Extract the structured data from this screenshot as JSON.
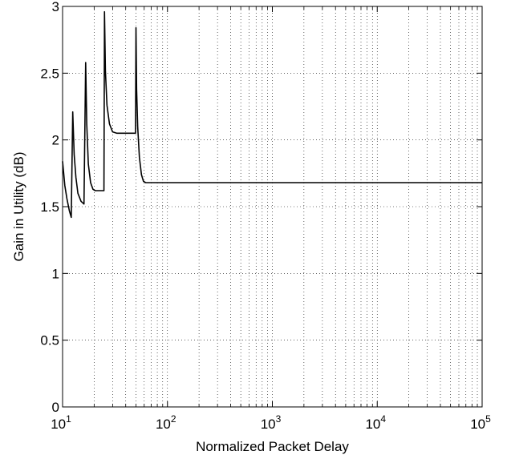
{
  "chart_data": {
    "type": "line",
    "title": "",
    "xlabel": "Normalized Packet Delay",
    "ylabel": "Gain in Utility (dB)",
    "xscale": "log",
    "xlim": [
      10,
      100000
    ],
    "ylim": [
      0,
      3
    ],
    "grid": true,
    "legend": "none",
    "x_ticks": [
      {
        "value": 10,
        "base": "10",
        "exp": "1"
      },
      {
        "value": 100,
        "base": "10",
        "exp": "2"
      },
      {
        "value": 1000,
        "base": "10",
        "exp": "3"
      },
      {
        "value": 10000,
        "base": "10",
        "exp": "4"
      },
      {
        "value": 100000,
        "base": "10",
        "exp": "5"
      }
    ],
    "y_ticks": [
      {
        "value": 0,
        "label": "0"
      },
      {
        "value": 0.5,
        "label": "0.5"
      },
      {
        "value": 1,
        "label": "1"
      },
      {
        "value": 1.5,
        "label": "1.5"
      },
      {
        "value": 2,
        "label": "2"
      },
      {
        "value": 2.5,
        "label": "2.5"
      },
      {
        "value": 3,
        "label": "3"
      }
    ],
    "series": [
      {
        "color": "#000000",
        "points": [
          [
            10.0,
            1.84
          ],
          [
            10.5,
            1.66
          ],
          [
            11.0,
            1.56
          ],
          [
            11.6,
            1.47
          ],
          [
            12.1,
            1.42
          ],
          [
            12.5,
            2.21
          ],
          [
            12.9,
            1.89
          ],
          [
            13.4,
            1.72
          ],
          [
            14.0,
            1.6
          ],
          [
            15.0,
            1.54
          ],
          [
            16.0,
            1.52
          ],
          [
            16.6,
            2.58
          ],
          [
            17.0,
            2.12
          ],
          [
            17.6,
            1.82
          ],
          [
            18.5,
            1.68
          ],
          [
            19.5,
            1.63
          ],
          [
            20.5,
            1.62
          ],
          [
            24.8,
            1.62
          ],
          [
            25.1,
            2.96
          ],
          [
            25.6,
            2.52
          ],
          [
            26.5,
            2.26
          ],
          [
            28.0,
            2.12
          ],
          [
            30.0,
            2.06
          ],
          [
            33.0,
            2.05
          ],
          [
            49.6,
            2.05
          ],
          [
            50.1,
            2.84
          ],
          [
            50.8,
            2.38
          ],
          [
            52.0,
            2.1
          ],
          [
            54.0,
            1.87
          ],
          [
            56.5,
            1.74
          ],
          [
            59.0,
            1.69
          ],
          [
            62.0,
            1.68
          ],
          [
            100000.0,
            1.68
          ]
        ]
      }
    ]
  }
}
